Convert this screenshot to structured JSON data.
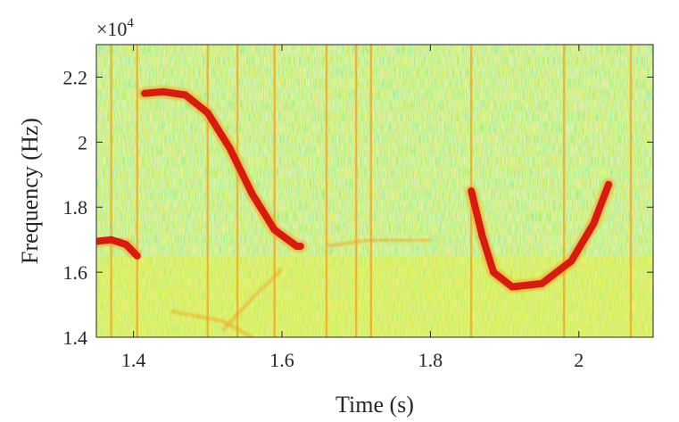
{
  "chart_data": {
    "type": "heatmap",
    "title": "",
    "xlabel": "Time (s)",
    "ylabel": "Frequency (Hz)",
    "xlim": [
      1.35,
      2.1
    ],
    "ylim": [
      14000,
      23000
    ],
    "x_ticks": [
      1.4,
      1.6,
      1.8,
      2.0
    ],
    "x_tick_labels": [
      "1.4",
      "1.6",
      "1.8",
      "2"
    ],
    "y_ticks": [
      14000,
      16000,
      18000,
      20000,
      22000
    ],
    "y_tick_labels": [
      "1.4",
      "1.6",
      "1.8",
      "2",
      "2.2"
    ],
    "y_exponent_label": {
      "base": "×10",
      "exponent": "4"
    },
    "grid": false,
    "colormap": [
      "#1fbfb0",
      "#7fe07a",
      "#f2f02a",
      "#f5a21a",
      "#d81a10"
    ],
    "ridges": [
      {
        "points": [
          [
            1.35,
            16950
          ],
          [
            1.37,
            17000
          ],
          [
            1.39,
            16850
          ],
          [
            1.405,
            16500
          ]
        ]
      },
      {
        "points": [
          [
            1.415,
            21500
          ],
          [
            1.44,
            21550
          ],
          [
            1.47,
            21450
          ],
          [
            1.5,
            20900
          ],
          [
            1.53,
            19800
          ],
          [
            1.56,
            18400
          ],
          [
            1.59,
            17300
          ],
          [
            1.62,
            16800
          ],
          [
            1.625,
            16800
          ]
        ]
      },
      {
        "points": [
          [
            1.855,
            18500
          ],
          [
            1.87,
            17100
          ],
          [
            1.885,
            16000
          ],
          [
            1.91,
            15550
          ],
          [
            1.95,
            15650
          ],
          [
            1.99,
            16350
          ],
          [
            2.02,
            17500
          ],
          [
            2.04,
            18700
          ]
        ]
      }
    ],
    "vertical_streaks": [
      1.37,
      1.405,
      1.5,
      1.54,
      1.59,
      1.66,
      1.7,
      1.72,
      1.855,
      1.98,
      2.07
    ],
    "faint_ridges": [
      {
        "points": [
          [
            1.66,
            16800
          ],
          [
            1.72,
            17000
          ],
          [
            1.8,
            17000
          ]
        ]
      },
      {
        "points": [
          [
            1.45,
            14800
          ],
          [
            1.52,
            14500
          ],
          [
            1.56,
            14000
          ]
        ]
      },
      {
        "points": [
          [
            1.52,
            14200
          ],
          [
            1.56,
            15200
          ],
          [
            1.6,
            16100
          ]
        ]
      }
    ]
  }
}
